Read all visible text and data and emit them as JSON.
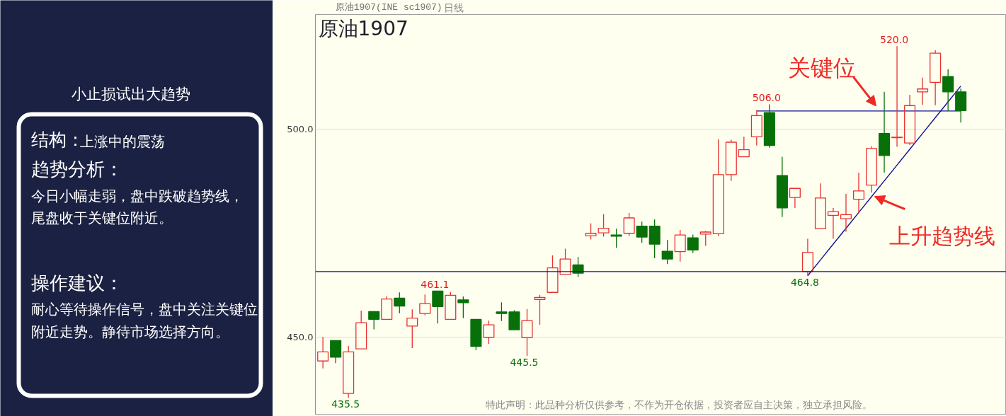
{
  "chart_data": [
    {
      "type": "other",
      "annotations": [
        "小止损试出大趋势",
        "结构：",
        "上涨中的震荡",
        "趋势分析：",
        "今日小幅走弱，盘中跌破趋势线，尾盘收于关键位附近。",
        "操作建议：",
        "耐心等待操作信号，盘中关注关键位附近走势。静待市场选择方向。"
      ]
    },
    {
      "type": "candlestick",
      "title": "原油1907",
      "subtitle": "原油1907(INE sc1907)",
      "categories": [
        null,
        null,
        null,
        null,
        null,
        null,
        null,
        null,
        null,
        null,
        null,
        null,
        null,
        null,
        null,
        null,
        null,
        null,
        null,
        null,
        null,
        null,
        null,
        null,
        null,
        null,
        null,
        null,
        null,
        null,
        null,
        null,
        null,
        null,
        null,
        null,
        null,
        null,
        null,
        null,
        null,
        null,
        null,
        null,
        null,
        null,
        null,
        null,
        null,
        null,
        null
      ],
      "ohlc": [
        [
          444.3,
          450.1,
          442.5,
          446.5
        ],
        [
          449.2,
          449.3,
          443.8,
          445.2
        ],
        [
          436.5,
          447.9,
          435.5,
          446.5
        ],
        [
          447.2,
          456.4,
          447.2,
          453.5
        ],
        [
          456.2,
          456.2,
          451.9,
          454.3
        ],
        [
          454.3,
          459.8,
          454.3,
          459.2
        ],
        [
          459.4,
          460.8,
          455.8,
          457.5
        ],
        [
          452.7,
          456.7,
          447.4,
          454.6
        ],
        [
          455.7,
          460.3,
          455.3,
          458.1
        ],
        [
          461.1,
          461.1,
          453.3,
          457.4
        ],
        [
          454.3,
          460.9,
          454.3,
          460.1
        ],
        [
          459.0,
          459.8,
          454.6,
          458.3
        ],
        [
          454.3,
          454.3,
          446.9,
          447.8
        ],
        [
          450.0,
          454.0,
          448.4,
          453.0
        ],
        [
          456.1,
          458.4,
          453.9,
          455.7
        ],
        [
          456.1,
          456.5,
          451.8,
          451.8
        ],
        [
          449.9,
          456.8,
          445.5,
          454.0
        ],
        [
          459.1,
          460.2,
          453.0,
          459.6
        ],
        [
          460.8,
          469.7,
          460.8,
          466.7
        ],
        [
          465.1,
          471.3,
          465.1,
          468.8
        ],
        [
          467.4,
          469.3,
          464.5,
          465.4
        ],
        [
          474.4,
          477.4,
          473.5,
          475.0
        ],
        [
          475.1,
          479.6,
          474.2,
          476.2
        ],
        [
          474.6,
          476.1,
          471.5,
          474.3
        ],
        [
          475.0,
          479.9,
          474.3,
          478.7
        ],
        [
          476.7,
          477.8,
          472.7,
          474.1
        ],
        [
          476.7,
          478.3,
          469.0,
          472.4
        ],
        [
          470.7,
          473.4,
          467.6,
          468.8
        ],
        [
          470.6,
          475.8,
          468.2,
          474.6
        ],
        [
          473.9,
          474.7,
          470.3,
          471.0
        ],
        [
          474.8,
          475.6,
          472.0,
          475.3
        ],
        [
          474.9,
          497.6,
          474.3,
          489.1
        ],
        [
          489.1,
          497.5,
          487.6,
          496.9
        ],
        [
          493.4,
          498.2,
          493.4,
          495.1
        ],
        [
          498.2,
          504.6,
          496.1,
          503.3
        ],
        [
          504.0,
          506.0,
          495.6,
          496.1
        ],
        [
          488.9,
          493.4,
          478.9,
          481.1
        ],
        [
          483.6,
          485.8,
          481.1,
          485.8
        ],
        [
          465.8,
          473.7,
          464.8,
          470.4
        ],
        [
          476.1,
          487.0,
          476.1,
          483.5
        ],
        [
          479.3,
          481.1,
          473.7,
          480.2
        ],
        [
          478.5,
          484.5,
          475.4,
          479.5
        ],
        [
          483.2,
          489.6,
          479.9,
          485.2
        ],
        [
          486.6,
          495.9,
          484.8,
          495.4
        ],
        [
          499.0,
          509.0,
          489.6,
          493.7
        ],
        [
          498.0,
          520.0,
          495.8,
          498.1
        ],
        [
          496.7,
          508.3,
          496.2,
          505.7
        ],
        [
          509.0,
          512.4,
          505.9,
          509.7
        ],
        [
          511.3,
          519.0,
          505.8,
          518.3
        ],
        [
          512.7,
          514.4,
          504.4,
          509.0
        ],
        [
          509.0,
          509.8,
          501.6,
          504.5
        ]
      ],
      "colors": [
        "#e8312f",
        "#087008",
        "#e8312f",
        "#e8312f",
        "#087008",
        "#e8312f",
        "#087008",
        "#e8312f",
        "#e8312f",
        "#087008",
        "#e8312f",
        "#087008",
        "#087008",
        "#e8312f",
        "#087008",
        "#087008",
        "#e8312f",
        "#e8312f",
        "#e8312f",
        "#e8312f",
        "#087008",
        "#e8312f",
        "#e8312f",
        "#087008",
        "#e8312f",
        "#087008",
        "#087008",
        "#087008",
        "#e8312f",
        "#087008",
        "#e8312f",
        "#e8312f",
        "#e8312f",
        "#e8312f",
        "#e8312f",
        "#087008",
        "#087008",
        "#e8312f",
        "#e8312f",
        "#e8312f",
        "#e8312f",
        "#e8312f",
        "#e8312f",
        "#e8312f",
        "#087008",
        "#e8312f",
        "#e8312f",
        "#e8312f",
        "#e8312f",
        "#087008",
        "#087008"
      ],
      "ylim": [
        431.5,
        527.6
      ],
      "yticks": [
        {
          "value": 450,
          "label": "450.0"
        },
        {
          "value": 500,
          "label": "500.0"
        }
      ],
      "grid": "y",
      "tick_labels": "y",
      "ref_lines": [
        {
          "axis": "y",
          "value": 465.8,
          "color": "#10109a",
          "line_style": "solid"
        }
      ],
      "series": [
        {
          "type": "line",
          "name": "关键位",
          "values": [
            null,
            null,
            null,
            null,
            null,
            null,
            null,
            null,
            null,
            null,
            null,
            null,
            null,
            null,
            null,
            null,
            null,
            null,
            null,
            null,
            null,
            null,
            null,
            null,
            null,
            null,
            null,
            null,
            null,
            null,
            null,
            null,
            null,
            null,
            504.4,
            504.4,
            504.4,
            504.4,
            504.4,
            504.4,
            504.4,
            504.4,
            504.4,
            504.4,
            504.4,
            504.4,
            504.4,
            504.4,
            504.4,
            504.4,
            504.4
          ],
          "color": "#10109a"
        },
        {
          "type": "line",
          "name": "上升趋势线",
          "values": [
            null,
            null,
            null,
            null,
            null,
            null,
            null,
            null,
            null,
            null,
            null,
            null,
            null,
            null,
            null,
            null,
            null,
            null,
            null,
            null,
            null,
            null,
            null,
            null,
            null,
            null,
            null,
            null,
            null,
            null,
            null,
            null,
            null,
            null,
            null,
            null,
            null,
            null,
            464.8,
            468.6,
            472.4,
            476.2,
            480.0,
            483.8,
            487.6,
            491.4,
            495.2,
            499.0,
            502.8,
            506.6,
            510.4
          ],
          "color": "#10109a"
        }
      ],
      "annotations": [
        {
          "text": "435.5",
          "y": 435.5
        },
        {
          "text": "461.1",
          "y": 461.1
        },
        {
          "text": "445.5",
          "y": 445.5
        },
        {
          "text": "506.0",
          "y": 506.0
        },
        {
          "text": "464.8",
          "y": 464.8
        },
        {
          "text": "520.0",
          "y": 520.0
        },
        "日线",
        "特此声明：此品种分析仅供参考，不作为开仓依据，投资者应自主决策，独立承担风险。"
      ]
    }
  ]
}
